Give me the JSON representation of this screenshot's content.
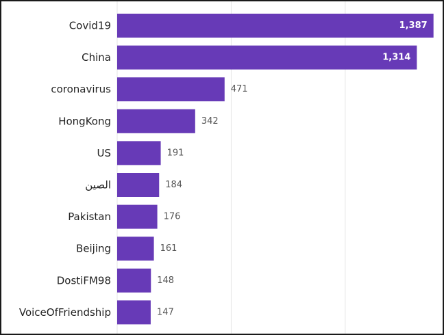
{
  "chart_data": {
    "type": "bar",
    "orientation": "horizontal",
    "title": "",
    "xlabel": "",
    "ylabel": "",
    "categories": [
      "Covid19",
      "China",
      "coronavirus",
      "HongKong",
      "US",
      "الصين",
      "Pakistan",
      "Beijing",
      "DostiFM98",
      "VoiceOfFriendship"
    ],
    "values": [
      1387,
      1314,
      471,
      342,
      191,
      184,
      176,
      161,
      148,
      147
    ],
    "value_labels": [
      "1,387",
      "1,314",
      "471",
      "342",
      "191",
      "184",
      "176",
      "161",
      "148",
      "147"
    ],
    "xlim": [
      0,
      1400
    ],
    "grid": true,
    "bar_color": "#673ab7",
    "inside_label_color": "#ffffff",
    "outside_label_color": "#555555",
    "gridline_color": "#e6e6e6"
  }
}
